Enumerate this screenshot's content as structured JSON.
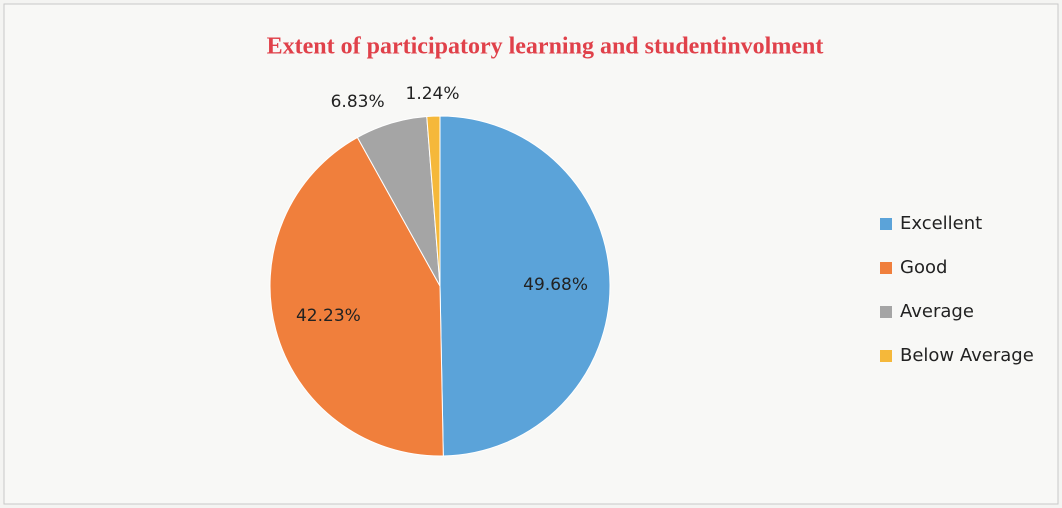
{
  "chart_data": {
    "type": "pie",
    "title": "Extent of participatory learning and studentinvolment",
    "categories": [
      "Excellent",
      "Good",
      "Average",
      "Below Average"
    ],
    "values": [
      49.68,
      42.23,
      6.83,
      1.24
    ],
    "value_labels": [
      "49.68%",
      "42.23%",
      "6.83%",
      "1.24%"
    ],
    "colors": [
      "#5ba3d9",
      "#f07f3c",
      "#a5a5a5",
      "#f5b83a"
    ],
    "legend": "right"
  }
}
